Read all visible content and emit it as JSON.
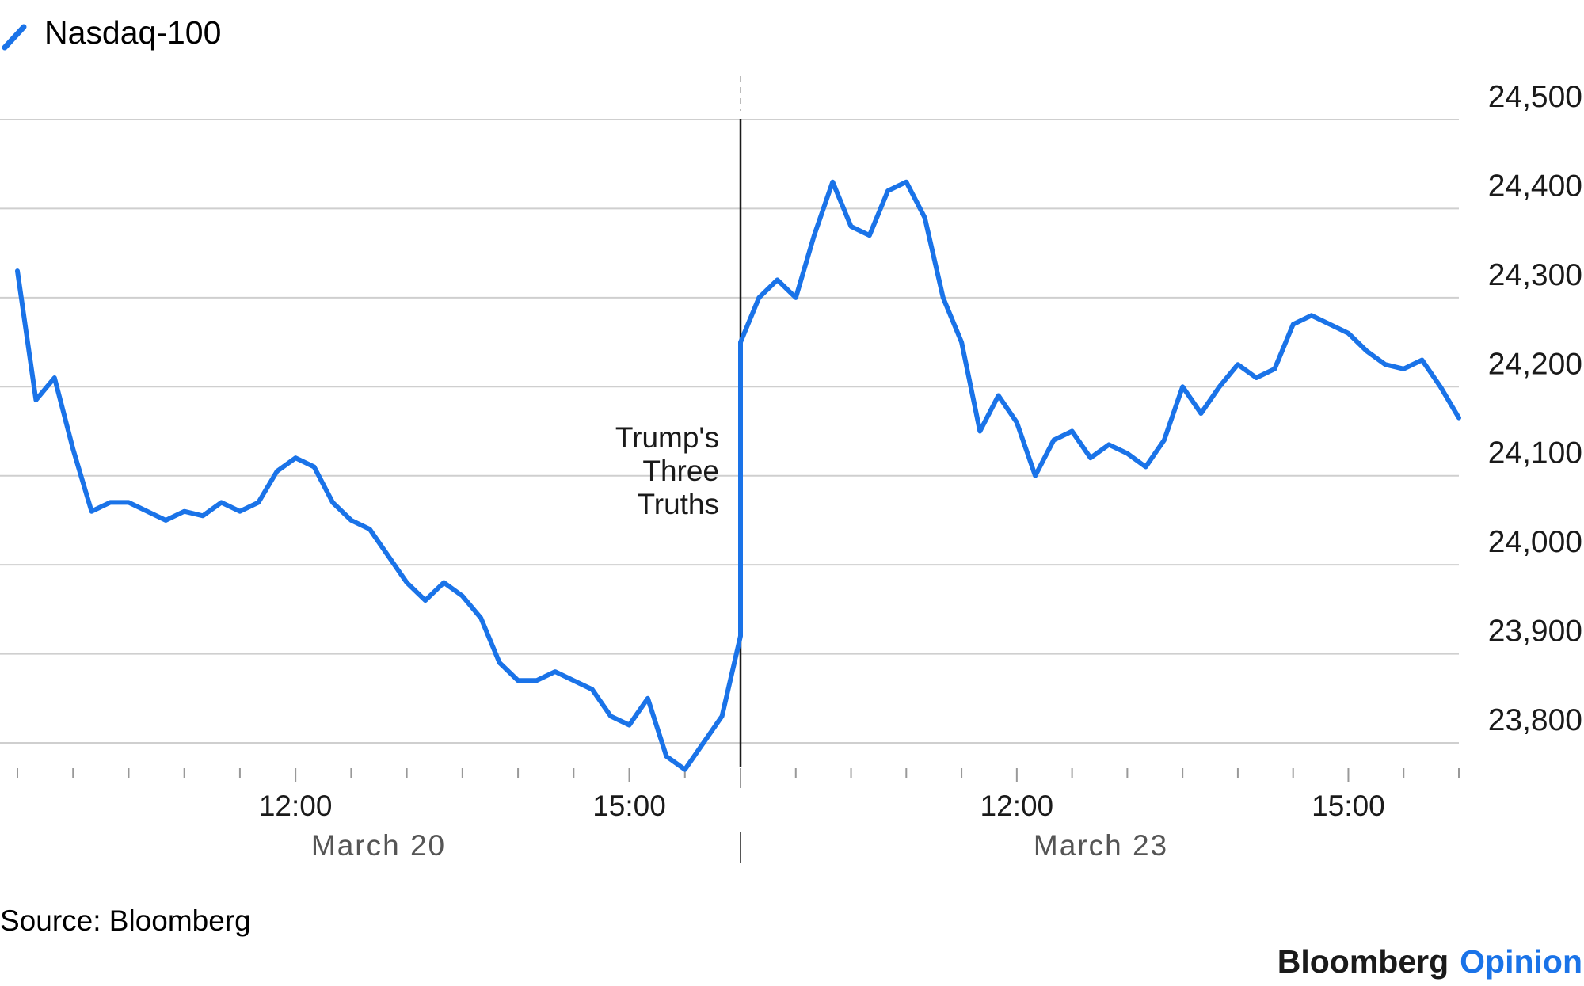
{
  "chart_data": {
    "type": "line",
    "title": "",
    "xlabel": "",
    "ylabel": "",
    "series": [
      {
        "name": "Nasdaq-100",
        "color": "#1a73e8",
        "segments": [
          {
            "day": "March 20",
            "times": [
              "09:30",
              "09:40",
              "09:50",
              "10:00",
              "10:10",
              "10:20",
              "10:30",
              "10:40",
              "10:50",
              "11:00",
              "11:10",
              "11:20",
              "11:30",
              "11:40",
              "11:50",
              "12:00",
              "12:10",
              "12:20",
              "12:30",
              "12:40",
              "12:50",
              "13:00",
              "13:10",
              "13:20",
              "13:30",
              "13:40",
              "13:50",
              "14:00",
              "14:10",
              "14:20",
              "14:30",
              "14:40",
              "14:50",
              "15:00",
              "15:10",
              "15:20",
              "15:30",
              "15:40",
              "15:50",
              "16:00"
            ],
            "values": [
              24330,
              24185,
              24210,
              24130,
              24060,
              24070,
              24070,
              24060,
              24050,
              24060,
              24055,
              24070,
              24060,
              24070,
              24105,
              24120,
              24110,
              24070,
              24050,
              24040,
              24010,
              23980,
              23960,
              23980,
              23965,
              23940,
              23890,
              23870,
              23870,
              23880,
              23870,
              23860,
              23830,
              23820,
              23850,
              23785,
              23770,
              23800,
              23830,
              23920
            ]
          },
          {
            "day": "March 23",
            "times": [
              "09:30",
              "09:40",
              "09:50",
              "10:00",
              "10:10",
              "10:20",
              "10:30",
              "10:40",
              "10:50",
              "11:00",
              "11:10",
              "11:20",
              "11:30",
              "11:40",
              "11:50",
              "12:00",
              "12:10",
              "12:20",
              "12:30",
              "12:40",
              "12:50",
              "13:00",
              "13:10",
              "13:20",
              "13:30",
              "13:40",
              "13:50",
              "14:00",
              "14:10",
              "14:20",
              "14:30",
              "14:40",
              "14:50",
              "15:00",
              "15:10",
              "15:20",
              "15:30",
              "15:40",
              "15:50",
              "16:00"
            ],
            "values": [
              24250,
              24300,
              24320,
              24300,
              24370,
              24430,
              24380,
              24370,
              24420,
              24430,
              24390,
              24300,
              24250,
              24150,
              24190,
              24160,
              24100,
              24140,
              24150,
              24120,
              24135,
              24125,
              24110,
              24140,
              24200,
              24170,
              24200,
              24225,
              24210,
              24220,
              24270,
              24280,
              24270,
              24260,
              24240,
              24225,
              24220,
              24230,
              24200,
              24165
            ]
          }
        ]
      }
    ],
    "x_days": [
      "March 20",
      "March 23"
    ],
    "x_ticks": [
      "12:00",
      "15:00",
      "12:00",
      "15:00"
    ],
    "y_ticks": [
      "24,500",
      "24,400",
      "24,300",
      "24,200",
      "24,100",
      "24,000",
      "23,900",
      "23,800"
    ],
    "y_tick_values": [
      24500,
      24400,
      24300,
      24200,
      24100,
      24000,
      23900,
      23800
    ],
    "ylim": [
      23770,
      24520
    ],
    "grid": true,
    "legend_position": "top-left",
    "annotation": {
      "lines": [
        "Trump's",
        "Three",
        "Truths"
      ],
      "at": "March 23 09:30"
    }
  },
  "legend": {
    "label": "Nasdaq-100"
  },
  "footer": {
    "source": "Source: Bloomberg",
    "brand_name": "Bloomberg",
    "brand_product": "Opinion",
    "brand_color": "#1a73e8"
  }
}
